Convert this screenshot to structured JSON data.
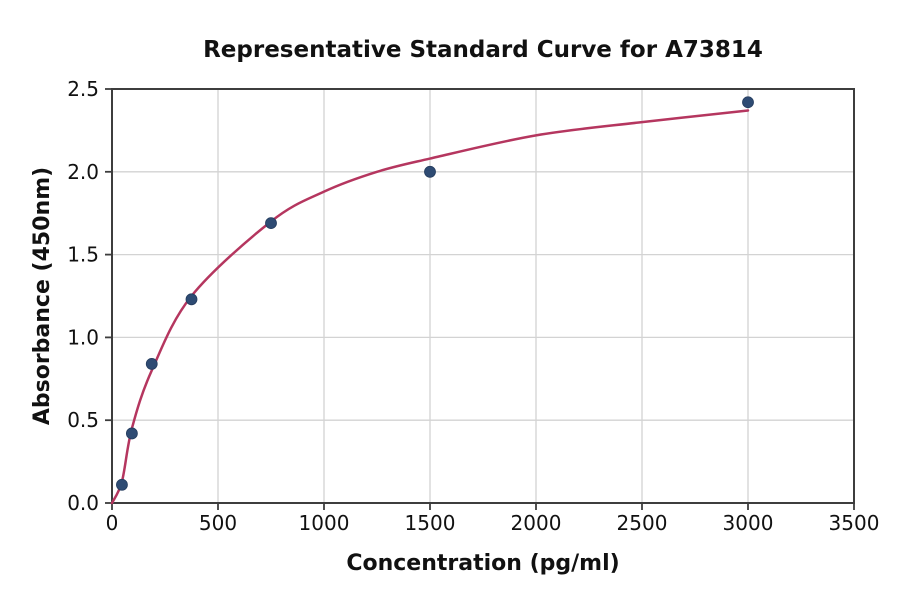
{
  "chart_data": {
    "type": "scatter",
    "title": "Representative Standard Curve for A73814",
    "xlabel": "Concentration (pg/ml)",
    "ylabel": "Absorbance (450nm)",
    "xlim": [
      0,
      3500
    ],
    "ylim": [
      0,
      2.5
    ],
    "x_ticks": [
      0,
      500,
      1000,
      1500,
      2000,
      2500,
      3000,
      3500
    ],
    "x_tick_labels": [
      "0",
      "500",
      "1000",
      "1500",
      "2000",
      "2500",
      "3000",
      "3500"
    ],
    "y_ticks": [
      0.0,
      0.5,
      1.0,
      1.5,
      2.0,
      2.5
    ],
    "y_tick_labels": [
      "0.0",
      "0.5",
      "1.0",
      "1.5",
      "2.0",
      "2.5"
    ],
    "grid": true,
    "legend": "none",
    "points": [
      {
        "x": 46.9,
        "y": 0.11
      },
      {
        "x": 93.8,
        "y": 0.42
      },
      {
        "x": 187.5,
        "y": 0.84
      },
      {
        "x": 375,
        "y": 1.23
      },
      {
        "x": 750,
        "y": 1.69
      },
      {
        "x": 1500,
        "y": 2.0
      },
      {
        "x": 3000,
        "y": 2.42
      }
    ],
    "fit_curve": [
      [
        0,
        0.0
      ],
      [
        46.9,
        0.13
      ],
      [
        93.8,
        0.45
      ],
      [
        187.5,
        0.8
      ],
      [
        375,
        1.25
      ],
      [
        750,
        1.7
      ],
      [
        1000,
        1.88
      ],
      [
        1250,
        2.0
      ],
      [
        1500,
        2.08
      ],
      [
        2000,
        2.22
      ],
      [
        2500,
        2.3
      ],
      [
        3000,
        2.37
      ]
    ],
    "colors": {
      "curve": "#b5365f",
      "points": "#2e4b73",
      "grid": "#d3d3d3",
      "spine": "#3d3d3d",
      "text": "#111111"
    }
  }
}
